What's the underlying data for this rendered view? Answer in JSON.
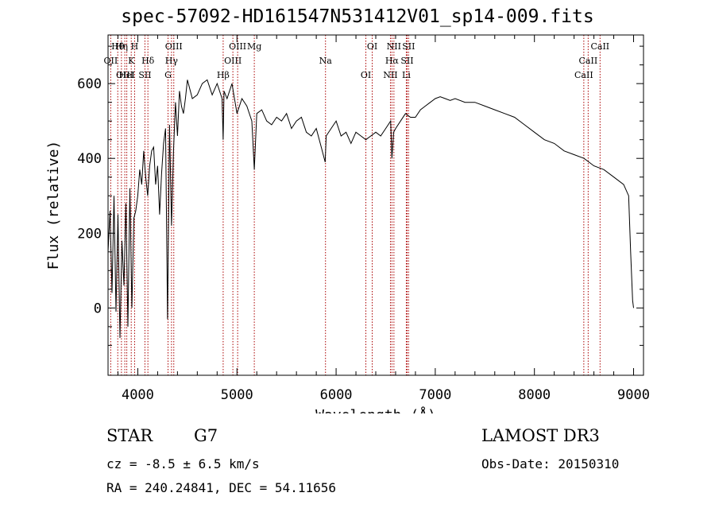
{
  "chart_data": {
    "type": "line",
    "title": "spec-57092-HD161547N531412V01_sp14-009.fits",
    "xlabel": "Wavelength (Å)",
    "ylabel": "Flux (relative)",
    "xlim": [
      3700,
      9100
    ],
    "ylim": [
      -180,
      730
    ],
    "xticks": [
      4000,
      5000,
      6000,
      7000,
      8000,
      9000
    ],
    "yticks": [
      0,
      200,
      400,
      600
    ],
    "series": [
      {
        "name": "spectrum",
        "x": [
          3700,
          3720,
          3740,
          3760,
          3780,
          3800,
          3820,
          3840,
          3860,
          3880,
          3900,
          3920,
          3940,
          3960,
          3980,
          4000,
          4020,
          4040,
          4060,
          4080,
          4100,
          4120,
          4140,
          4160,
          4180,
          4200,
          4220,
          4240,
          4260,
          4280,
          4300,
          4320,
          4340,
          4360,
          4380,
          4400,
          4420,
          4440,
          4460,
          4480,
          4500,
          4550,
          4600,
          4650,
          4700,
          4750,
          4800,
          4850,
          4861,
          4870,
          4900,
          4950,
          5000,
          5050,
          5100,
          5150,
          5175,
          5200,
          5250,
          5300,
          5350,
          5400,
          5450,
          5500,
          5550,
          5600,
          5650,
          5700,
          5750,
          5800,
          5850,
          5890,
          5900,
          5950,
          6000,
          6050,
          6100,
          6150,
          6200,
          6250,
          6300,
          6350,
          6400,
          6450,
          6500,
          6550,
          6563,
          6580,
          6600,
          6650,
          6700,
          6750,
          6800,
          6850,
          6900,
          6950,
          7000,
          7050,
          7100,
          7150,
          7200,
          7300,
          7400,
          7500,
          7600,
          7700,
          7800,
          7900,
          8000,
          8100,
          8200,
          8300,
          8400,
          8500,
          8600,
          8700,
          8800,
          8900,
          8950,
          8970,
          8990,
          9000
        ],
        "y": [
          150,
          260,
          40,
          300,
          -10,
          250,
          -80,
          180,
          60,
          280,
          -50,
          320,
          0,
          240,
          260,
          300,
          370,
          330,
          420,
          350,
          300,
          380,
          420,
          430,
          330,
          380,
          250,
          360,
          440,
          480,
          -30,
          490,
          220,
          420,
          550,
          460,
          580,
          540,
          520,
          560,
          610,
          560,
          570,
          600,
          610,
          570,
          600,
          560,
          450,
          580,
          560,
          600,
          520,
          560,
          540,
          500,
          370,
          520,
          530,
          500,
          490,
          510,
          500,
          520,
          480,
          500,
          510,
          470,
          460,
          480,
          430,
          390,
          460,
          480,
          500,
          460,
          470,
          440,
          470,
          460,
          450,
          460,
          470,
          460,
          480,
          500,
          400,
          470,
          480,
          500,
          520,
          510,
          510,
          530,
          540,
          550,
          560,
          565,
          560,
          555,
          560,
          550,
          550,
          540,
          530,
          520,
          510,
          490,
          470,
          450,
          440,
          420,
          410,
          400,
          380,
          370,
          350,
          330,
          300,
          150,
          20,
          0
        ]
      }
    ],
    "lines": [
      {
        "label": "Hθ",
        "x": 3798,
        "color": "#aa0000"
      },
      {
        "label": "OII",
        "x": 3727,
        "color": "#aa0000"
      },
      {
        "label": "OIII",
        "x": 3869,
        "color": "#aa0000"
      },
      {
        "label": "Hη",
        "x": 3835,
        "color": "#aa0000"
      },
      {
        "label": "K",
        "x": 3934,
        "color": "#aa0000"
      },
      {
        "label": "HeI",
        "x": 3889,
        "color": "#aa0000"
      },
      {
        "label": "H",
        "x": 3968,
        "color": "#aa0000"
      },
      {
        "label": "Hδ",
        "x": 4102,
        "color": "#aa0000"
      },
      {
        "label": "SII",
        "x": 4072,
        "color": "#aa0000"
      },
      {
        "label": "OIII",
        "x": 4363,
        "color": "#aa0000"
      },
      {
        "label": "Hγ",
        "x": 4340,
        "color": "#aa0000"
      },
      {
        "label": "G",
        "x": 4305,
        "color": "#aa0000"
      },
      {
        "label": "OIII",
        "x": 5007,
        "color": "#aa0000"
      },
      {
        "label": "OIII",
        "x": 4959,
        "color": "#aa0000"
      },
      {
        "label": "Hβ",
        "x": 4861,
        "color": "#aa0000"
      },
      {
        "label": "Mg",
        "x": 5175,
        "color": "#aa0000"
      },
      {
        "label": "Na",
        "x": 5893,
        "color": "#aa0000"
      },
      {
        "label": "OI",
        "x": 6300,
        "color": "#aa0000"
      },
      {
        "label": "OI",
        "x": 6364,
        "color": "#aa0000"
      },
      {
        "label": "Hα",
        "x": 6563,
        "color": "#aa0000"
      },
      {
        "label": "NII",
        "x": 6548,
        "color": "#aa0000"
      },
      {
        "label": "NII",
        "x": 6583,
        "color": "#aa0000"
      },
      {
        "label": "SII",
        "x": 6716,
        "color": "#aa0000"
      },
      {
        "label": "Li",
        "x": 6708,
        "color": "#aa0000"
      },
      {
        "label": "SII",
        "x": 6731,
        "color": "#aa0000"
      },
      {
        "label": "CaII",
        "x": 8542,
        "color": "#aa0000"
      },
      {
        "label": "CaII",
        "x": 8498,
        "color": "#aa0000"
      },
      {
        "label": "CaII",
        "x": 8662,
        "color": "#aa0000"
      }
    ]
  },
  "info": {
    "object_class": "STAR",
    "subclass": "G7",
    "survey": "LAMOST DR3",
    "cz": "cz = -8.5 ± 6.5 km/s",
    "obs_date": "Obs-Date: 20150310",
    "coords": "RA = 240.24841, DEC =  54.11656"
  }
}
